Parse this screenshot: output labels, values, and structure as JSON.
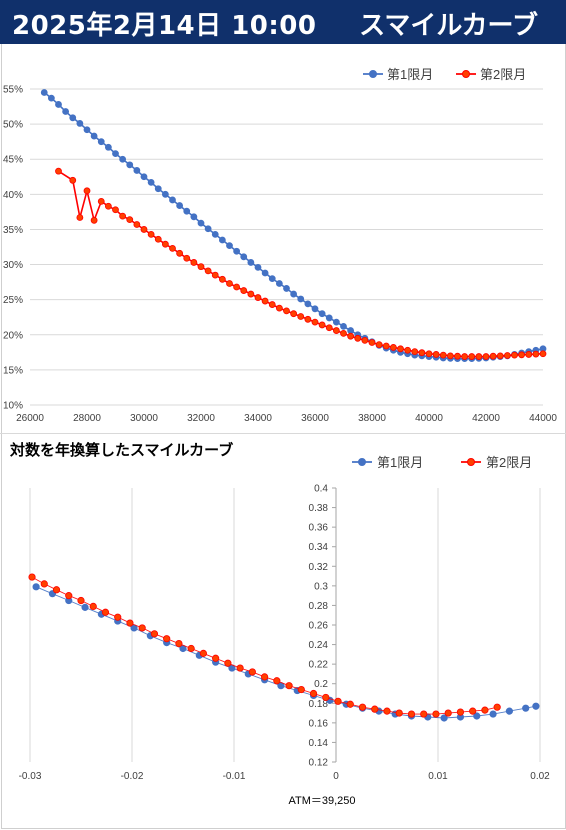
{
  "header": {
    "datetime": "2025年2月14日 10:00",
    "title": "スマイルカーブ"
  },
  "colors": {
    "header_bg": "#10306b",
    "series1": "#4472c4",
    "series2": "#ff0000",
    "series2_fill": "#ff4000"
  },
  "chart_data": [
    {
      "type": "line",
      "title": "",
      "xlim": [
        26000,
        44000
      ],
      "ylim": [
        10,
        55
      ],
      "x_ticks": [
        "26000",
        "28000",
        "30000",
        "32000",
        "34000",
        "36000",
        "38000",
        "40000",
        "42000",
        "44000"
      ],
      "y_ticks": [
        "10%",
        "15%",
        "20%",
        "25%",
        "30%",
        "35%",
        "40%",
        "45%",
        "50%",
        "55%"
      ],
      "legend_position": "top-right",
      "grid": "horizontal",
      "series": [
        {
          "name": "第1限月",
          "color": "#4472c4",
          "points": [
            [
              26500,
              54.5
            ],
            [
              26750,
              53.7
            ],
            [
              27000,
              52.8
            ],
            [
              27250,
              51.8
            ],
            [
              27500,
              50.9
            ],
            [
              27750,
              50.1
            ],
            [
              28000,
              49.2
            ],
            [
              28250,
              48.3
            ],
            [
              28500,
              47.5
            ],
            [
              28750,
              46.7
            ],
            [
              29000,
              45.8
            ],
            [
              29250,
              45.0
            ],
            [
              29500,
              44.2
            ],
            [
              29750,
              43.4
            ],
            [
              30000,
              42.5
            ],
            [
              30250,
              41.7
            ],
            [
              30500,
              40.8
            ],
            [
              30750,
              40.0
            ],
            [
              31000,
              39.2
            ],
            [
              31250,
              38.4
            ],
            [
              31500,
              37.6
            ],
            [
              31750,
              36.8
            ],
            [
              32000,
              35.9
            ],
            [
              32250,
              35.1
            ],
            [
              32500,
              34.3
            ],
            [
              32750,
              33.5
            ],
            [
              33000,
              32.7
            ],
            [
              33250,
              31.9
            ],
            [
              33500,
              31.1
            ],
            [
              33750,
              30.3
            ],
            [
              34000,
              29.6
            ],
            [
              34250,
              28.8
            ],
            [
              34500,
              28.0
            ],
            [
              34750,
              27.3
            ],
            [
              35000,
              26.6
            ],
            [
              35250,
              25.8
            ],
            [
              35500,
              25.1
            ],
            [
              35750,
              24.4
            ],
            [
              36000,
              23.7
            ],
            [
              36250,
              23.0
            ],
            [
              36500,
              22.4
            ],
            [
              36750,
              21.8
            ],
            [
              37000,
              21.2
            ],
            [
              37250,
              20.6
            ],
            [
              37500,
              20.0
            ],
            [
              37750,
              19.5
            ],
            [
              38000,
              19.0
            ],
            [
              38250,
              18.5
            ],
            [
              38500,
              18.1
            ],
            [
              38750,
              17.8
            ],
            [
              39000,
              17.5
            ],
            [
              39250,
              17.3
            ],
            [
              39500,
              17.1
            ],
            [
              39750,
              17.0
            ],
            [
              40000,
              16.9
            ],
            [
              40250,
              16.8
            ],
            [
              40500,
              16.7
            ],
            [
              40750,
              16.65
            ],
            [
              41000,
              16.6
            ],
            [
              41250,
              16.6
            ],
            [
              41500,
              16.6
            ],
            [
              41750,
              16.65
            ],
            [
              42000,
              16.7
            ],
            [
              42250,
              16.8
            ],
            [
              42500,
              16.9
            ],
            [
              42750,
              17.0
            ],
            [
              43000,
              17.2
            ],
            [
              43250,
              17.4
            ],
            [
              43500,
              17.6
            ],
            [
              43750,
              17.8
            ],
            [
              44000,
              18.0
            ]
          ]
        },
        {
          "name": "第2限月",
          "color": "#ff0000",
          "points": [
            [
              27000,
              43.3
            ],
            [
              27500,
              42.0
            ],
            [
              27750,
              36.7
            ],
            [
              28000,
              40.5
            ],
            [
              28250,
              36.3
            ],
            [
              28500,
              39.0
            ],
            [
              28750,
              38.3
            ],
            [
              29000,
              37.8
            ],
            [
              29250,
              36.9
            ],
            [
              29500,
              36.4
            ],
            [
              29750,
              35.7
            ],
            [
              30000,
              35.0
            ],
            [
              30250,
              34.3
            ],
            [
              30500,
              33.6
            ],
            [
              30750,
              32.9
            ],
            [
              31000,
              32.3
            ],
            [
              31250,
              31.6
            ],
            [
              31500,
              30.9
            ],
            [
              31750,
              30.3
            ],
            [
              32000,
              29.7
            ],
            [
              32250,
              29.1
            ],
            [
              32500,
              28.5
            ],
            [
              32750,
              27.9
            ],
            [
              33000,
              27.3
            ],
            [
              33250,
              26.8
            ],
            [
              33500,
              26.3
            ],
            [
              33750,
              25.8
            ],
            [
              34000,
              25.3
            ],
            [
              34250,
              24.8
            ],
            [
              34500,
              24.3
            ],
            [
              34750,
              23.8
            ],
            [
              35000,
              23.4
            ],
            [
              35250,
              23.0
            ],
            [
              35500,
              22.6
            ],
            [
              35750,
              22.2
            ],
            [
              36000,
              21.8
            ],
            [
              36250,
              21.4
            ],
            [
              36500,
              21.0
            ],
            [
              36750,
              20.6
            ],
            [
              37000,
              20.2
            ],
            [
              37250,
              19.8
            ],
            [
              37500,
              19.5
            ],
            [
              37750,
              19.2
            ],
            [
              38000,
              18.9
            ],
            [
              38250,
              18.6
            ],
            [
              38500,
              18.4
            ],
            [
              38750,
              18.2
            ],
            [
              39000,
              18.0
            ],
            [
              39250,
              17.8
            ],
            [
              39500,
              17.6
            ],
            [
              39750,
              17.45
            ],
            [
              40000,
              17.3
            ],
            [
              40250,
              17.2
            ],
            [
              40500,
              17.1
            ],
            [
              40750,
              17.0
            ],
            [
              41000,
              16.95
            ],
            [
              41250,
              16.9
            ],
            [
              41500,
              16.9
            ],
            [
              41750,
              16.9
            ],
            [
              42000,
              16.9
            ],
            [
              42250,
              16.95
            ],
            [
              42500,
              17.0
            ],
            [
              42750,
              17.05
            ],
            [
              43000,
              17.1
            ],
            [
              43250,
              17.15
            ],
            [
              43500,
              17.2
            ],
            [
              43750,
              17.25
            ],
            [
              44000,
              17.3
            ]
          ]
        }
      ]
    },
    {
      "type": "scatter",
      "title": "対数を年換算したスマイルカーブ",
      "xlim": [
        -0.03,
        0.02
      ],
      "ylim": [
        0.12,
        0.4
      ],
      "x_ticks": [
        "-0.03",
        "-0.02",
        "-0.01",
        "0",
        "0.01",
        "0.02"
      ],
      "y_ticks": [
        "0.12",
        "0.14",
        "0.16",
        "0.18",
        "0.2",
        "0.22",
        "0.24",
        "0.26",
        "0.28",
        "0.3",
        "0.32",
        "0.34",
        "0.36",
        "0.38",
        "0.4"
      ],
      "legend_position": "top-right",
      "grid": "vertical",
      "annotation": "ATM＝39,250",
      "series": [
        {
          "name": "第1限月",
          "color": "#4472c4",
          "points": [
            [
              -0.0294,
              0.299
            ],
            [
              -0.0278,
              0.292
            ],
            [
              -0.0262,
              0.285
            ],
            [
              -0.0246,
              0.278
            ],
            [
              -0.023,
              0.271
            ],
            [
              -0.0214,
              0.264
            ],
            [
              -0.0198,
              0.257
            ],
            [
              -0.0182,
              0.249
            ],
            [
              -0.0166,
              0.242
            ],
            [
              -0.015,
              0.236
            ],
            [
              -0.0134,
              0.229
            ],
            [
              -0.0118,
              0.222
            ],
            [
              -0.0102,
              0.216
            ],
            [
              -0.0086,
              0.21
            ],
            [
              -0.007,
              0.204
            ],
            [
              -0.0054,
              0.198
            ],
            [
              -0.0038,
              0.193
            ],
            [
              -0.0022,
              0.188
            ],
            [
              -0.0006,
              0.183
            ],
            [
              0.001,
              0.179
            ],
            [
              0.0026,
              0.175
            ],
            [
              0.0042,
              0.172
            ],
            [
              0.0058,
              0.169
            ],
            [
              0.0074,
              0.167
            ],
            [
              0.009,
              0.166
            ],
            [
              0.0106,
              0.165
            ],
            [
              0.0122,
              0.166
            ],
            [
              0.0138,
              0.167
            ],
            [
              0.0154,
              0.169
            ],
            [
              0.017,
              0.172
            ],
            [
              0.0186,
              0.175
            ],
            [
              0.0196,
              0.177
            ]
          ]
        },
        {
          "name": "第2限月",
          "color": "#ff0000",
          "points": [
            [
              -0.0298,
              0.309
            ],
            [
              -0.0286,
              0.302
            ],
            [
              -0.0274,
              0.296
            ],
            [
              -0.0262,
              0.29
            ],
            [
              -0.025,
              0.285
            ],
            [
              -0.0238,
              0.279
            ],
            [
              -0.0226,
              0.273
            ],
            [
              -0.0214,
              0.268
            ],
            [
              -0.0202,
              0.262
            ],
            [
              -0.019,
              0.257
            ],
            [
              -0.0178,
              0.251
            ],
            [
              -0.0166,
              0.246
            ],
            [
              -0.0154,
              0.241
            ],
            [
              -0.0142,
              0.236
            ],
            [
              -0.013,
              0.231
            ],
            [
              -0.0118,
              0.226
            ],
            [
              -0.0106,
              0.221
            ],
            [
              -0.0094,
              0.216
            ],
            [
              -0.0082,
              0.212
            ],
            [
              -0.007,
              0.207
            ],
            [
              -0.0058,
              0.203
            ],
            [
              -0.0046,
              0.198
            ],
            [
              -0.0034,
              0.194
            ],
            [
              -0.0022,
              0.19
            ],
            [
              -0.001,
              0.186
            ],
            [
              0.0002,
              0.182
            ],
            [
              0.0014,
              0.179
            ],
            [
              0.0026,
              0.176
            ],
            [
              0.0038,
              0.174
            ],
            [
              0.005,
              0.172
            ],
            [
              0.0062,
              0.17
            ],
            [
              0.0074,
              0.169
            ],
            [
              0.0086,
              0.169
            ],
            [
              0.0098,
              0.169
            ],
            [
              0.011,
              0.17
            ],
            [
              0.0122,
              0.171
            ],
            [
              0.0134,
              0.172
            ],
            [
              0.0146,
              0.173
            ],
            [
              0.0158,
              0.176
            ]
          ]
        }
      ]
    }
  ]
}
